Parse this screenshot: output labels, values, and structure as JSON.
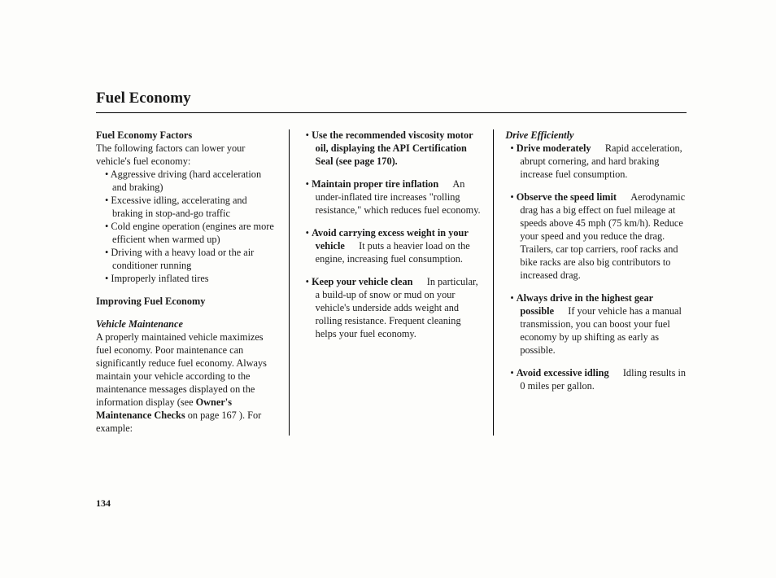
{
  "pageTitle": "Fuel Economy",
  "pageNumber": "134",
  "col1": {
    "heading1": "Fuel Economy Factors",
    "intro1": "The following factors can lower your vehicle's fuel economy:",
    "factorItems": [
      "Aggressive driving (hard acceleration and braking)",
      "Excessive idling, accelerating and braking in stop-and-go traffic",
      "Cold engine operation (engines are more efficient when warmed up)",
      "Driving with a heavy load or the air conditioner running",
      "Improperly inflated tires"
    ],
    "heading2": "Improving Fuel Economy",
    "sub1": "Vehicle Maintenance",
    "para1a": "A properly maintained vehicle maximizes fuel economy. Poor maintenance can significantly reduce fuel economy. Always maintain your vehicle according to the maintenance messages displayed on the information display (see ",
    "para1bold": "Owner's Maintenance Checks",
    "para1b": " on page 167 ). For example:"
  },
  "col2": {
    "items": [
      {
        "lead": "Use the recommended viscosity motor oil, displaying the API Certification Seal (see page 170).",
        "rest": ""
      },
      {
        "lead": "Maintain proper tire inflation",
        "dash": true,
        "rest": "An under-inflated tire increases \"rolling resistance,\" which reduces fuel economy."
      },
      {
        "lead": "Avoid carrying excess weight in your vehicle",
        "dash": true,
        "rest": "It puts a heavier load on the engine, increasing fuel consumption."
      },
      {
        "lead": "Keep your vehicle clean",
        "dash": true,
        "rest": "In particular, a build-up of snow or mud on your vehicle's underside adds weight and rolling resistance. Frequent cleaning helps your fuel economy."
      }
    ]
  },
  "col3": {
    "sub": "Drive Efficiently",
    "items": [
      {
        "lead": "Drive moderately",
        "dash": true,
        "rest": "Rapid acceleration, abrupt cornering, and hard braking increase fuel consumption."
      },
      {
        "lead": "Observe the speed limit",
        "dash": true,
        "rest": "Aerodynamic drag has a big effect on fuel mileage at speeds above 45 mph (75 km/h). Reduce your speed and you reduce the drag. Trailers, car top carriers, roof racks and bike racks are also big contributors to increased drag."
      },
      {
        "lead": "Always drive in the highest gear possible",
        "dash": true,
        "rest": "If your vehicle has a manual transmission, you can boost your fuel economy by up shifting as early as possible."
      },
      {
        "lead": "Avoid excessive idling",
        "dash": true,
        "rest": "Idling results in 0 miles per gallon."
      }
    ]
  }
}
